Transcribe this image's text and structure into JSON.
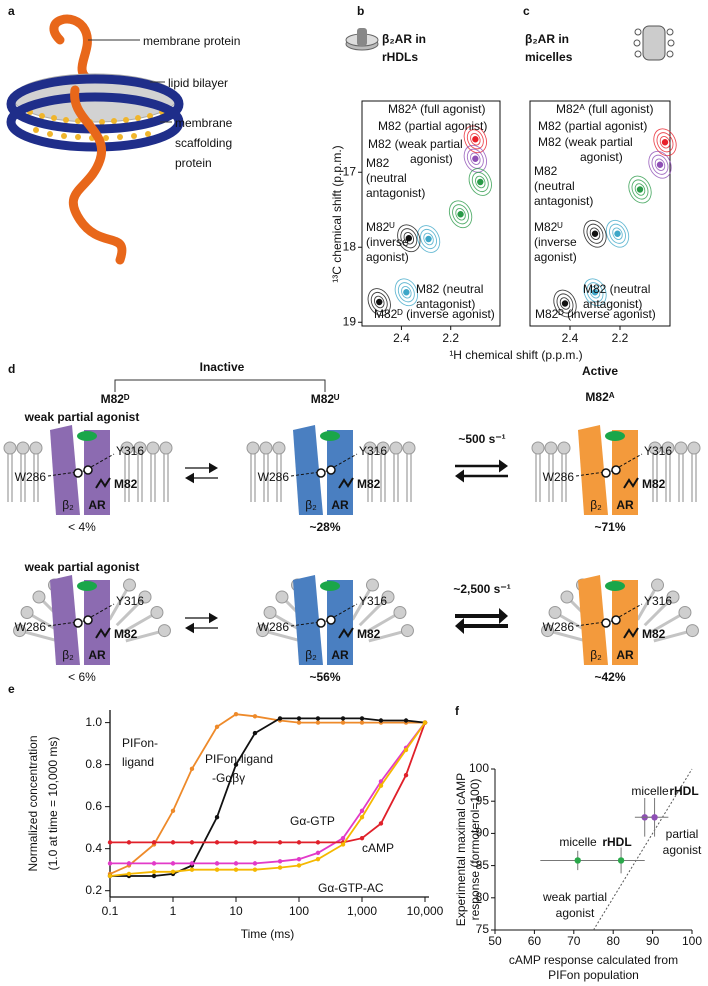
{
  "panel_labels": [
    "a",
    "b",
    "c",
    "d",
    "e",
    "f"
  ],
  "panel_a": {
    "labels": [
      "membrane protein",
      "lipid bilayer"
    ],
    "scaffold_lines": [
      "membrane",
      "scaffolding",
      "protein"
    ]
  },
  "chart_data": [
    {
      "type": "contour",
      "title": [
        "β₂AR in",
        "rHDLs"
      ],
      "xlabel": "¹H chemical shift (p.p.m.)",
      "ylabel": "¹³C chemical shift (p.p.m.)",
      "xlim": [
        2.56,
        2.0
      ],
      "xticks": [
        2.4,
        2.2
      ],
      "ylim": [
        16.05,
        19.05
      ],
      "yticks": [
        17,
        18,
        19
      ],
      "peaks": [
        {
          "x": 2.1,
          "y": 16.56,
          "color": "#e8202a"
        },
        {
          "x": 2.1,
          "y": 16.82,
          "color": "#8e4fb5"
        },
        {
          "x": 2.08,
          "y": 17.13,
          "color": "#2a9a48"
        },
        {
          "x": 2.16,
          "y": 17.56,
          "color": "#2a9a48"
        },
        {
          "x": 2.29,
          "y": 17.89,
          "color": "#3ea7c8"
        },
        {
          "x": 2.37,
          "y": 17.88,
          "color": "#111111"
        },
        {
          "x": 2.38,
          "y": 18.6,
          "color": "#3ea7c8"
        },
        {
          "x": 2.49,
          "y": 18.73,
          "color": "#111111"
        }
      ],
      "annotations": [
        {
          "lines": [
            "M82ᴬ (full agonist)"
          ],
          "color": "#e8202a"
        },
        {
          "lines": [
            "M82 (partial agonist)"
          ],
          "color": "#8e4fb5"
        },
        {
          "lines": [
            "M82 (weak partial",
            "agonist)"
          ],
          "color": "#2a9a48"
        },
        {
          "lines": [
            "M82",
            "(neutral",
            "antagonist)"
          ],
          "color": "#3ea7c8"
        },
        {
          "lines": [
            "M82ᵁ",
            "(inverse",
            "agonist)"
          ],
          "color": "#111111"
        },
        {
          "lines": [
            "M82 (neutral",
            "antagonist)"
          ],
          "color": "#3ea7c8"
        },
        {
          "lines": [
            "M82ᴰ (inverse agonist)"
          ],
          "color": "#111111"
        }
      ]
    },
    {
      "type": "contour",
      "title": [
        "β₂AR in",
        "micelles"
      ],
      "xlim": [
        2.56,
        2.0
      ],
      "xticks": [
        2.4,
        2.2
      ],
      "ylim": [
        16.05,
        19.05
      ],
      "peaks": [
        {
          "x": 2.02,
          "y": 16.6,
          "color": "#e8202a"
        },
        {
          "x": 2.04,
          "y": 16.9,
          "color": "#8e4fb5"
        },
        {
          "x": 2.12,
          "y": 17.23,
          "color": "#2a9a48"
        },
        {
          "x": 2.21,
          "y": 17.82,
          "color": "#3ea7c8"
        },
        {
          "x": 2.3,
          "y": 17.82,
          "color": "#111111"
        },
        {
          "x": 2.3,
          "y": 18.6,
          "color": "#3ea7c8"
        },
        {
          "x": 2.42,
          "y": 18.75,
          "color": "#111111"
        }
      ],
      "annotations": [
        {
          "lines": [
            "M82ᴬ (full agonist)"
          ],
          "color": "#e8202a"
        },
        {
          "lines": [
            "M82 (partial agonist)"
          ],
          "color": "#8e4fb5"
        },
        {
          "lines": [
            "M82 (weak partial",
            "agonist)"
          ],
          "color": "#2a9a48"
        },
        {
          "lines": [
            "M82",
            "(neutral",
            "antagonist)"
          ],
          "color": "#3ea7c8"
        },
        {
          "lines": [
            "M82ᵁ",
            "(inverse",
            "agonist)"
          ],
          "color": "#111111"
        },
        {
          "lines": [
            "M82 (neutral",
            "antagonist)"
          ],
          "color": "#3ea7c8"
        },
        {
          "lines": [
            "M82ᴰ (inverse agonist)"
          ],
          "color": "#111111"
        }
      ]
    },
    {
      "type": "line",
      "xlabel": "Time (ms)",
      "ylabel": [
        "Normalized concentration",
        "(1.0 at time = 10,000 ms)"
      ],
      "log_x": true,
      "xlim": [
        0.1,
        10000
      ],
      "xticks": [
        0.1,
        1,
        10,
        100,
        {
          "value": 1000,
          "label": "1,000"
        },
        {
          "value": 10000,
          "label": "10,000"
        }
      ],
      "ylim": [
        0.17,
        1.06
      ],
      "yticks": [
        0.2,
        0.4,
        0.6,
        0.8,
        {
          "value": 1,
          "label": "1.0"
        }
      ],
      "x": [
        0.1,
        0.2,
        0.5,
        1,
        2,
        5,
        10,
        20,
        50,
        100,
        200,
        500,
        1000,
        2000,
        5000,
        10000
      ],
      "series": [
        {
          "label": [
            "PIFon-",
            "ligand"
          ],
          "color": "#ee8a2a",
          "values": [
            0.28,
            0.32,
            0.42,
            0.58,
            0.78,
            0.98,
            1.04,
            1.03,
            1.01,
            1.0,
            1.0,
            1.0,
            1.0,
            1.0,
            1.0,
            1.0
          ]
        },
        {
          "label": [
            "PIFon-ligand",
            "-Gαβγ"
          ],
          "color": "#111111",
          "values": [
            0.27,
            0.27,
            0.27,
            0.28,
            0.32,
            0.55,
            0.8,
            0.95,
            1.02,
            1.02,
            1.02,
            1.02,
            1.02,
            1.01,
            1.01,
            1.0
          ]
        },
        {
          "label": [
            "Gα-GTP"
          ],
          "color": "#e23ac8",
          "values": [
            0.33,
            0.33,
            0.33,
            0.33,
            0.33,
            0.33,
            0.33,
            0.33,
            0.34,
            0.35,
            0.38,
            0.45,
            0.58,
            0.72,
            0.88,
            1.0
          ]
        },
        {
          "label": [
            "cAMP"
          ],
          "color": "#e0202a",
          "values": [
            0.43,
            0.43,
            0.43,
            0.43,
            0.43,
            0.43,
            0.43,
            0.43,
            0.43,
            0.43,
            0.43,
            0.43,
            0.45,
            0.52,
            0.75,
            1.0
          ]
        },
        {
          "label": [
            "Gα-GTP-AC"
          ],
          "color": "#f5b800",
          "values": [
            0.27,
            0.28,
            0.29,
            0.29,
            0.3,
            0.3,
            0.3,
            0.3,
            0.31,
            0.32,
            0.35,
            0.42,
            0.55,
            0.7,
            0.87,
            1.0
          ]
        }
      ]
    },
    {
      "type": "scatter",
      "xlabel": [
        "cAMP response calculated from",
        "PIFon population"
      ],
      "ylabel": [
        "Experimental maximal cAMP",
        "response (formoterol=100)"
      ],
      "xlim": [
        50,
        100
      ],
      "xticks": [
        50,
        60,
        70,
        80,
        90,
        100
      ],
      "ylim": [
        75,
        100
      ],
      "yticks": [
        75,
        80,
        85,
        90,
        95,
        100
      ],
      "series": [
        {
          "color": "#2aa84a",
          "x": [
            71,
            82
          ],
          "values": [
            85.8,
            85.8
          ],
          "x_err": [
            9.5,
            6
          ],
          "y_err": [
            1.5,
            2
          ]
        },
        {
          "color": "#8e4fb5",
          "x": [
            88,
            90.5
          ],
          "values": [
            92.5,
            92.5
          ],
          "x_err": [
            2.5,
            3.5
          ],
          "y_err": [
            3,
            3
          ]
        }
      ],
      "annotations": [
        {
          "lines": [
            "micelle"
          ],
          "color": "#2aa84a",
          "bold": false
        },
        {
          "lines": [
            "rHDL"
          ],
          "color": "#2aa84a",
          "bold": true
        },
        {
          "lines": [
            "weak partial",
            "agonist"
          ],
          "color": "#2aa84a",
          "bold": false
        },
        {
          "lines": [
            "micelle"
          ],
          "color": "#8e4fb5",
          "bold": false
        },
        {
          "lines": [
            "rHDL"
          ],
          "color": "#8e4fb5",
          "bold": true
        },
        {
          "lines": [
            "partial",
            "agonist"
          ],
          "color": "#8e4fb5",
          "bold": false
        }
      ]
    }
  ],
  "panel_d": {
    "inactive": "Inactive",
    "active": "Active",
    "states": [
      "M82ᴰ",
      "M82ᵁ",
      "M82ᴬ"
    ],
    "ligand": "weak partial agonist",
    "residues": [
      "W286",
      "Y316",
      "M82"
    ],
    "subunits": [
      "β₂",
      "AR"
    ],
    "rows": [
      {
        "populations": [
          "< 4%",
          "~28%",
          "~71%"
        ],
        "rate": "~500 s⁻¹"
      },
      {
        "populations": [
          "< 6%",
          "~56%",
          "~42%"
        ],
        "rate": "~2,500 s⁻¹"
      }
    ]
  }
}
